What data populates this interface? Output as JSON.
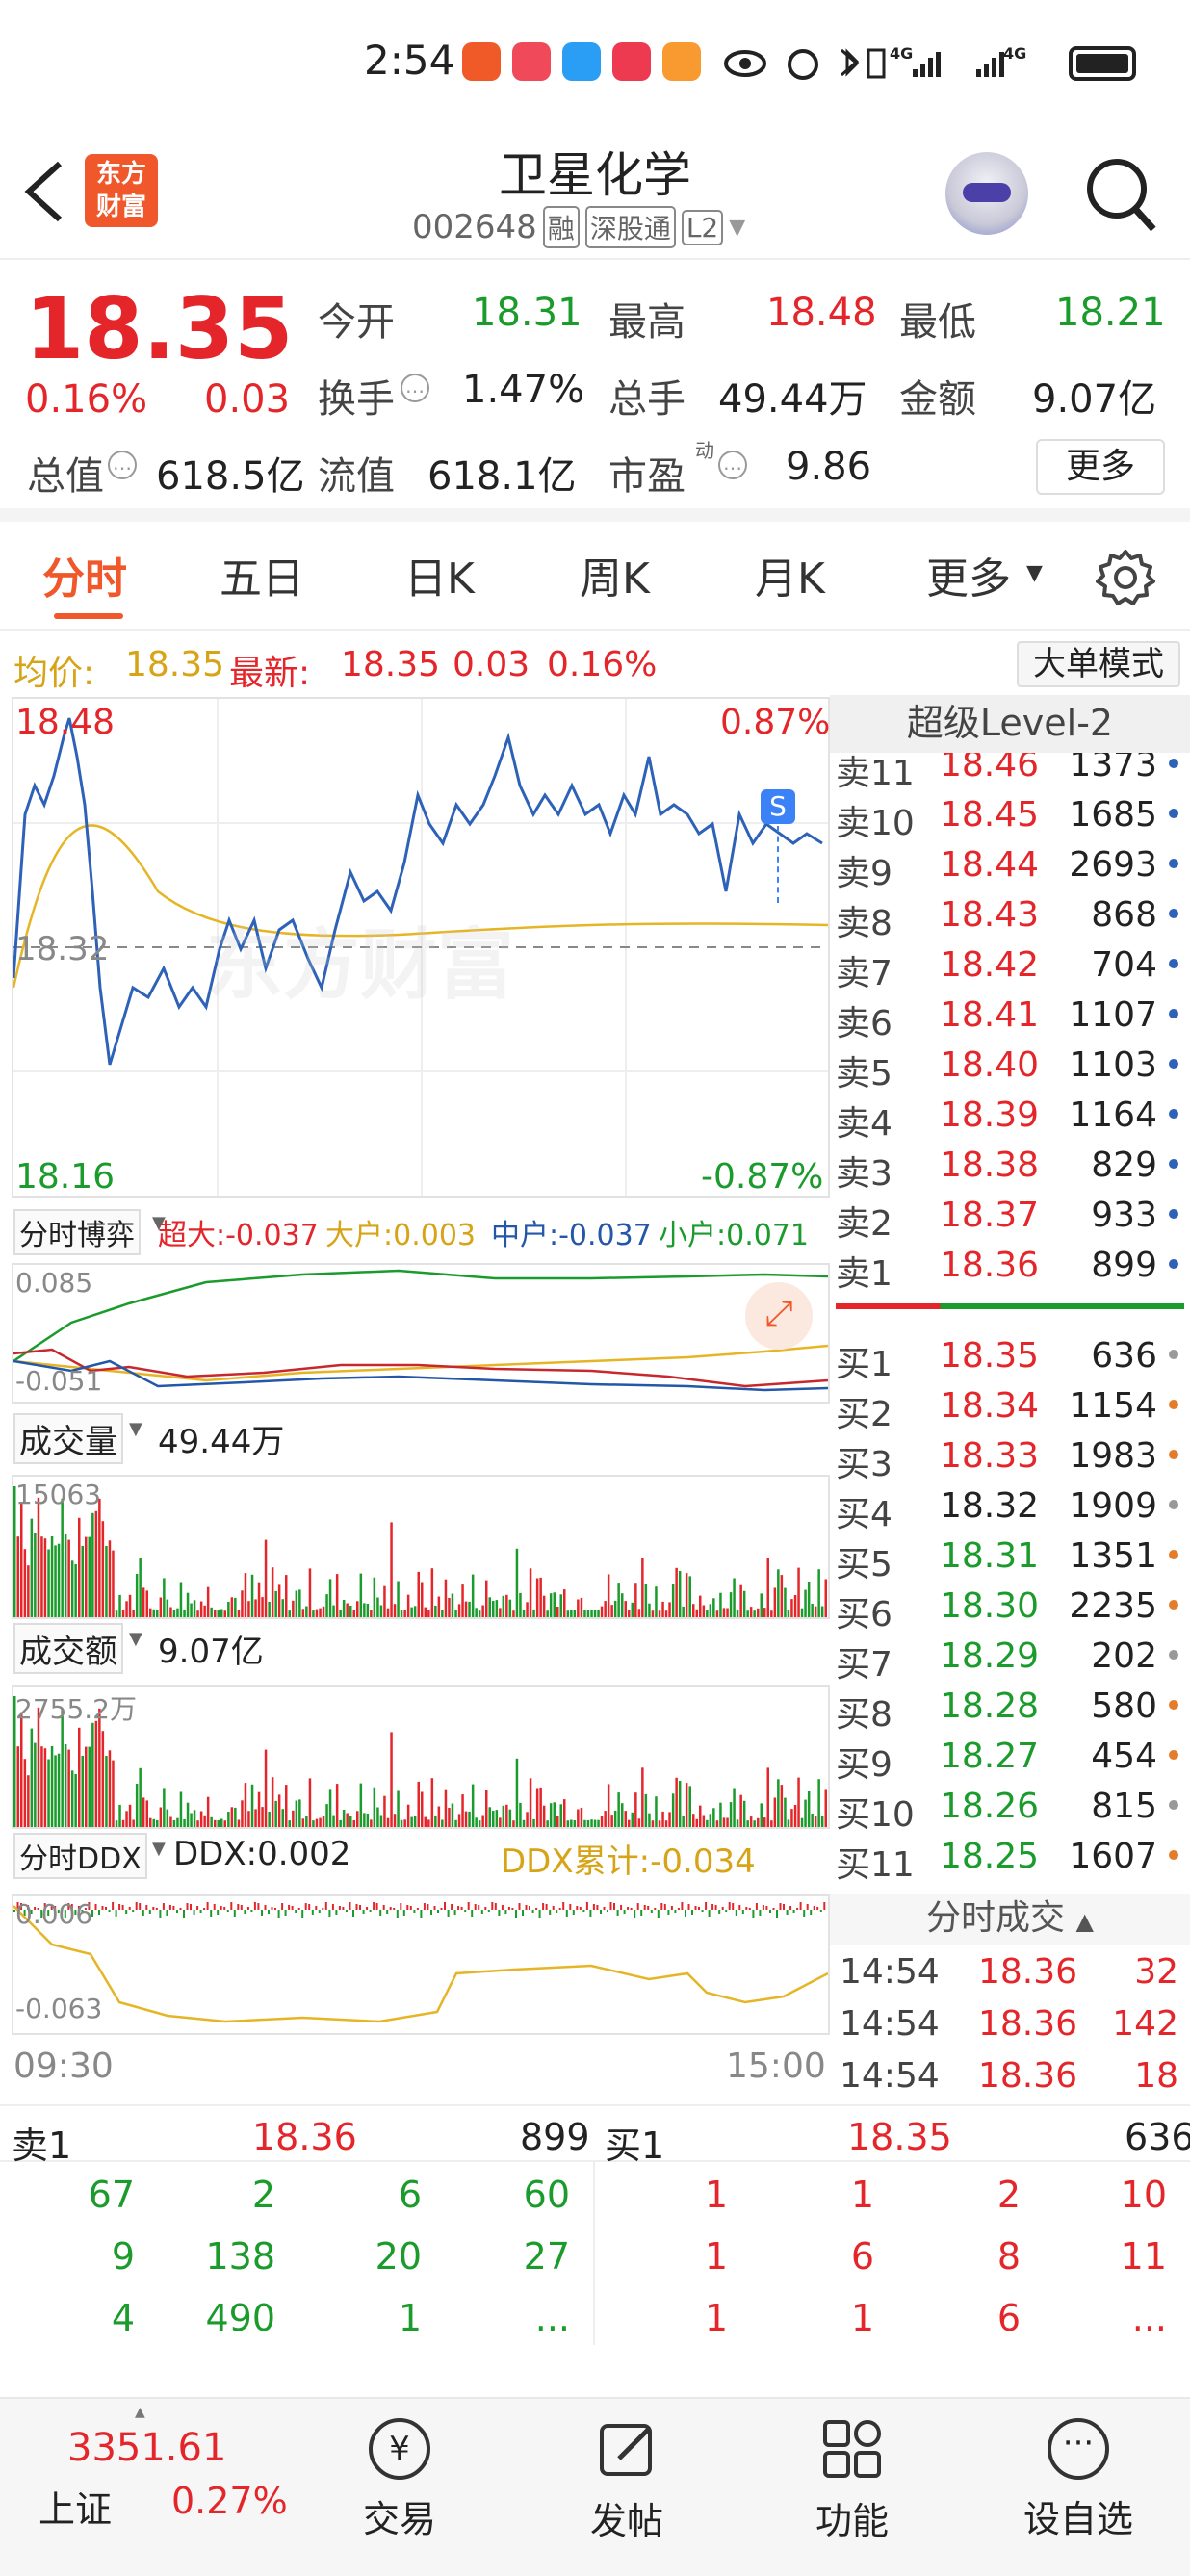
{
  "status": {
    "time": "2:54",
    "net1": "4G",
    "net2": "4G"
  },
  "header": {
    "logo_line1": "东方",
    "logo_line2": "财富",
    "title": "卫星化学",
    "code": "002648",
    "tag1": "融",
    "tag2": "深股通",
    "tag3": "L2"
  },
  "quote": {
    "price": "18.35",
    "pct": "0.16%",
    "chg": "0.03",
    "open_label": "今开",
    "open": "18.31",
    "high_label": "最高",
    "high": "18.48",
    "low_label": "最低",
    "low": "18.21",
    "turnover_label": "换手",
    "turnover": "1.47%",
    "vol_label": "总手",
    "vol": "49.44万",
    "amount_label": "金额",
    "amount": "9.07亿",
    "mcap_label": "总值",
    "mcap": "618.5亿",
    "float_label": "流值",
    "float": "618.1亿",
    "pe_label": "市盈",
    "pe_sup": "动",
    "pe": "9.86",
    "more": "更多"
  },
  "tabs": [
    "分时",
    "五日",
    "日K",
    "周K",
    "月K",
    "更多"
  ],
  "summary": {
    "avg_label": "均价:",
    "avg": "18.35",
    "last_label": "最新:",
    "last": "18.35",
    "chg": "0.03",
    "pct": "0.16%",
    "mode_btn": "大单模式"
  },
  "chart": {
    "ymax": "18.48",
    "ymin": "18.16",
    "mid": "18.32",
    "pmax": "0.87%",
    "pmin": "-0.87%",
    "watermark": "东方财富",
    "s_tag": "S"
  },
  "game": {
    "selector": "分时博弈",
    "super": "超大:-0.037",
    "big": "大户:0.003",
    "mid": "中户:-0.037",
    "small": "小户:0.071",
    "top": "0.085",
    "bottom": "-0.051"
  },
  "volume": {
    "selector": "成交量",
    "value": "49.44万",
    "max": "15063"
  },
  "amount": {
    "selector": "成交额",
    "value": "9.07亿",
    "max": "2755.2万"
  },
  "ddx": {
    "selector": "分时DDX",
    "ddx": "DDX:0.002",
    "cum": "DDX累计:-0.034",
    "top": "0.006",
    "bottom": "-0.063"
  },
  "time_axis": {
    "start": "09:30",
    "end": "15:00"
  },
  "level2": {
    "title": "超级Level-2",
    "asks": [
      {
        "l": "卖11",
        "p": "18.46",
        "v": "1373"
      },
      {
        "l": "卖10",
        "p": "18.45",
        "v": "1685"
      },
      {
        "l": "卖9",
        "p": "18.44",
        "v": "2693"
      },
      {
        "l": "卖8",
        "p": "18.43",
        "v": "868"
      },
      {
        "l": "卖7",
        "p": "18.42",
        "v": "704"
      },
      {
        "l": "卖6",
        "p": "18.41",
        "v": "1107"
      },
      {
        "l": "卖5",
        "p": "18.40",
        "v": "1103"
      },
      {
        "l": "卖4",
        "p": "18.39",
        "v": "1164"
      },
      {
        "l": "卖3",
        "p": "18.38",
        "v": "829"
      },
      {
        "l": "卖2",
        "p": "18.37",
        "v": "933"
      },
      {
        "l": "卖1",
        "p": "18.36",
        "v": "899"
      }
    ],
    "bids": [
      {
        "l": "买1",
        "p": "18.35",
        "v": "636"
      },
      {
        "l": "买2",
        "p": "18.34",
        "v": "1154"
      },
      {
        "l": "买3",
        "p": "18.33",
        "v": "1983"
      },
      {
        "l": "买4",
        "p": "18.32",
        "v": "1909"
      },
      {
        "l": "买5",
        "p": "18.31",
        "v": "1351"
      },
      {
        "l": "买6",
        "p": "18.30",
        "v": "2235"
      },
      {
        "l": "买7",
        "p": "18.29",
        "v": "202"
      },
      {
        "l": "买8",
        "p": "18.28",
        "v": "580"
      },
      {
        "l": "买9",
        "p": "18.27",
        "v": "454"
      },
      {
        "l": "买10",
        "p": "18.26",
        "v": "815"
      },
      {
        "l": "买11",
        "p": "18.25",
        "v": "1607"
      }
    ],
    "ticks_title": "分时成交",
    "ticks": [
      {
        "t": "14:54",
        "p": "18.36",
        "v": "32"
      },
      {
        "t": "14:54",
        "p": "18.36",
        "v": "142"
      },
      {
        "t": "14:54",
        "p": "18.36",
        "v": "18"
      }
    ]
  },
  "queue": {
    "sell_label": "卖1",
    "sell_price": "18.36",
    "sell_vol": "899",
    "buy_label": "买1",
    "buy_price": "18.35",
    "buy_vol": "636",
    "sell_rows": [
      [
        "67",
        "2",
        "6",
        "60"
      ],
      [
        "9",
        "138",
        "20",
        "27"
      ],
      [
        "4",
        "490",
        "1",
        "..."
      ]
    ],
    "buy_rows": [
      [
        "1",
        "1",
        "2",
        "10"
      ],
      [
        "1",
        "6",
        "8",
        "11"
      ],
      [
        "1",
        "1",
        "6",
        "..."
      ]
    ]
  },
  "bottom": {
    "index_value": "3351.61",
    "index_name": "上证",
    "index_pct": "0.27%",
    "trade": "交易",
    "post": "发帖",
    "func": "功能",
    "watch": "设自选"
  },
  "colors": {
    "up": "#e4262b",
    "down": "#1a9b2c",
    "line": "#2d62b8",
    "avg": "#e6b526"
  }
}
